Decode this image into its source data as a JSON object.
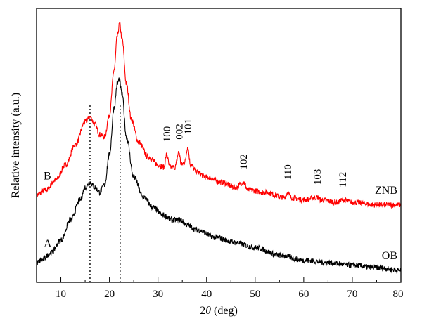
{
  "chart_data": {
    "type": "line",
    "title": "",
    "xlabel_prefix": "2",
    "xlabel_theta": "θ",
    "xlabel_suffix": " (deg)",
    "ylabel": "Relative intensity (a.u.)",
    "xlim": [
      5,
      80
    ],
    "ylim": [
      0,
      1
    ],
    "x_ticks": [
      "10",
      "20",
      "30",
      "40",
      "50",
      "60",
      "70",
      "80"
    ],
    "y_ticks_labeled": false,
    "grid": false,
    "series": [
      {
        "name": "ZNB",
        "curve_label": "B",
        "color": "#ff0000",
        "points": [
          [
            5,
            0.32
          ],
          [
            7,
            0.34
          ],
          [
            9,
            0.38
          ],
          [
            11,
            0.44
          ],
          [
            13,
            0.52
          ],
          [
            15,
            0.61
          ],
          [
            16,
            0.63
          ],
          [
            17,
            0.6
          ],
          [
            18,
            0.56
          ],
          [
            19,
            0.55
          ],
          [
            20,
            0.64
          ],
          [
            21,
            0.82
          ],
          [
            21.6,
            0.95
          ],
          [
            22.1,
            1.0
          ],
          [
            22.6,
            0.94
          ],
          [
            23.5,
            0.76
          ],
          [
            24.5,
            0.62
          ],
          [
            26,
            0.53
          ],
          [
            28,
            0.47
          ],
          [
            30,
            0.44
          ],
          [
            31.2,
            0.43
          ],
          [
            31.8,
            0.48
          ],
          [
            32.4,
            0.43
          ],
          [
            33.5,
            0.43
          ],
          [
            34.3,
            0.49
          ],
          [
            34.8,
            0.44
          ],
          [
            35.5,
            0.45
          ],
          [
            36.1,
            0.51
          ],
          [
            36.7,
            0.44
          ],
          [
            38,
            0.41
          ],
          [
            40,
            0.39
          ],
          [
            43,
            0.37
          ],
          [
            46,
            0.35
          ],
          [
            47.6,
            0.37
          ],
          [
            48.5,
            0.34
          ],
          [
            52,
            0.33
          ],
          [
            56,
            0.31
          ],
          [
            56.7,
            0.33
          ],
          [
            57.3,
            0.31
          ],
          [
            60,
            0.3
          ],
          [
            62.8,
            0.31
          ],
          [
            63.5,
            0.3
          ],
          [
            67,
            0.29
          ],
          [
            68,
            0.3
          ],
          [
            70,
            0.29
          ],
          [
            75,
            0.28
          ],
          [
            80,
            0.28
          ]
        ]
      },
      {
        "name": "OB",
        "curve_label": "A",
        "color": "#000000",
        "points": [
          [
            5,
            0.05
          ],
          [
            6,
            0.06
          ],
          [
            8,
            0.09
          ],
          [
            10,
            0.14
          ],
          [
            12,
            0.22
          ],
          [
            14,
            0.3
          ],
          [
            15,
            0.35
          ],
          [
            16,
            0.37
          ],
          [
            17,
            0.35
          ],
          [
            18,
            0.33
          ],
          [
            19,
            0.36
          ],
          [
            20,
            0.48
          ],
          [
            21,
            0.67
          ],
          [
            21.6,
            0.76
          ],
          [
            22,
            0.78
          ],
          [
            22.6,
            0.72
          ],
          [
            23.5,
            0.55
          ],
          [
            25,
            0.39
          ],
          [
            27,
            0.31
          ],
          [
            29,
            0.27
          ],
          [
            31,
            0.24
          ],
          [
            33,
            0.22
          ],
          [
            34.5,
            0.22
          ],
          [
            36,
            0.2
          ],
          [
            38,
            0.18
          ],
          [
            42,
            0.15
          ],
          [
            46,
            0.13
          ],
          [
            50,
            0.11
          ],
          [
            55,
            0.08
          ],
          [
            60,
            0.06
          ],
          [
            65,
            0.05
          ],
          [
            70,
            0.04
          ],
          [
            75,
            0.03
          ],
          [
            80,
            0.02
          ]
        ]
      }
    ],
    "reference_lines_x": [
      16,
      22.2
    ],
    "peak_labels": [
      {
        "text": "100",
        "x": 31.8,
        "y": 0.53
      },
      {
        "text": "002",
        "x": 34.3,
        "y": 0.54
      },
      {
        "text": "101",
        "x": 36.1,
        "y": 0.56
      },
      {
        "text": "102",
        "x": 47.6,
        "y": 0.42
      },
      {
        "text": "110",
        "x": 56.7,
        "y": 0.38
      },
      {
        "text": "103",
        "x": 62.8,
        "y": 0.36
      },
      {
        "text": "112",
        "x": 68.0,
        "y": 0.35
      }
    ]
  }
}
